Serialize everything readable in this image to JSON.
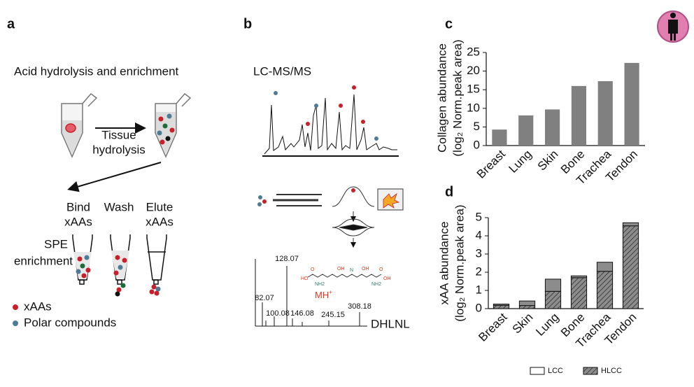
{
  "panel_labels": [
    "a",
    "b",
    "c",
    "d"
  ],
  "panel_a": {
    "title": "Acid hydrolysis and enrichment",
    "step": [
      "Tissue",
      "hydrolysis"
    ],
    "columns": [
      [
        "Bind",
        "xAAs"
      ],
      [
        "Wash"
      ],
      [
        "Elute",
        "xAAs"
      ]
    ],
    "spe": [
      "SPE",
      "enrichment"
    ],
    "legend": [
      {
        "name": "xAAs",
        "color": "#c8202a"
      },
      {
        "name": "Polar compounds",
        "color": "#4d7a96"
      }
    ]
  },
  "panel_b": {
    "title": "LC-MS/MS",
    "peaks": [
      "128.07",
      "82.07",
      "100.08",
      "146.08",
      "245.15",
      "308.18"
    ],
    "ion": "MH",
    "ion_charge": "+",
    "compound": "DHLNL",
    "atoms": [
      "HO",
      "O",
      "NH2",
      "OH",
      "N",
      "OH",
      "O",
      "OH",
      "NH2"
    ]
  },
  "chart_data": [
    {
      "type": "bar",
      "categories": [
        "Breast",
        "Lung",
        "Skin",
        "Bone",
        "Trachea",
        "Tendon"
      ],
      "values": [
        4.3,
        8.1,
        9.7,
        16,
        17.3,
        22.2
      ],
      "color": "#808080",
      "ylabel": [
        "Collagen abundance",
        "(log₂ Norm.peak area)"
      ],
      "ylim": [
        0,
        25
      ],
      "yticks": [
        0,
        5,
        10,
        15,
        20,
        25
      ]
    },
    {
      "type": "stacked_bar",
      "categories": [
        "Breast",
        "Skin",
        "Lung",
        "Bone",
        "Trachea",
        "Tendon"
      ],
      "series": [
        {
          "name": "HLCC",
          "color": "#8c8c8c",
          "hatch": true,
          "values": [
            0.18,
            0.17,
            0.95,
            1.7,
            2.05,
            4.55
          ]
        },
        {
          "name": "LCC",
          "color": "#8c8c8c",
          "hatch": false,
          "values": [
            0.07,
            0.25,
            0.67,
            0.1,
            0.5,
            0.17
          ]
        }
      ],
      "ylabel": [
        "xAA abundance",
        "(log₂ Norm.peak area)"
      ],
      "ylim": [
        0,
        5
      ],
      "yticks": [
        0,
        1,
        2,
        3,
        4,
        5
      ],
      "legend": "bottom"
    }
  ]
}
